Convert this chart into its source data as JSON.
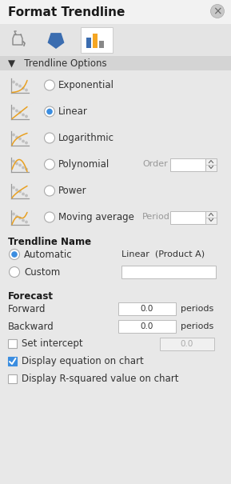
{
  "title": "Format Trendline",
  "bg_color": "#e8e8e8",
  "title_bar_color": "#f2f2f2",
  "tab_bar_color": "#e4e4e4",
  "section_header_color": "#d4d4d4",
  "trendline_options": [
    {
      "label": "Exponential",
      "selected": false,
      "curve": "exp"
    },
    {
      "label": "Linear",
      "selected": true,
      "curve": "linear"
    },
    {
      "label": "Logarithmic",
      "selected": false,
      "curve": "log"
    },
    {
      "label": "Polynomial",
      "selected": false,
      "curve": "poly",
      "extra_label": "Order",
      "has_spinner": true
    },
    {
      "label": "Power",
      "selected": false,
      "curve": "power"
    },
    {
      "label": "Moving average",
      "selected": false,
      "curve": "moving",
      "extra_label": "Period",
      "has_spinner": true
    }
  ],
  "trendline_name_label": "Trendline Name",
  "automatic_label": "Automatic",
  "automatic_selected": true,
  "automatic_value": "Linear  (Product A)",
  "custom_label": "Custom",
  "forecast_label": "Forecast",
  "forward_label": "Forward",
  "forward_value": "0.0",
  "backward_label": "Backward",
  "backward_value": "0.0",
  "set_intercept_label": "Set intercept",
  "set_intercept_checked": false,
  "intercept_value": "0.0",
  "display_eq_label": "Display equation on chart",
  "display_eq_checked": true,
  "display_rsq_label": "Display R-squared value on chart",
  "display_rsq_checked": false,
  "radio_selected_color": "#3b8de0",
  "checkbox_checked_color": "#3b8de0",
  "orange_color": "#e8a020",
  "dot_scatter_color": "#c0c0c0",
  "input_box_color": "#ffffff",
  "input_border_color": "#bbbbbb",
  "spinner_color": "#f0f0f0",
  "tab_active_color": "#ffffff",
  "tab_inactive_color": "#e4e4e4",
  "bar1_color": "#3b6db0",
  "bar2_color": "#f5a623",
  "bar3_color": "#888888",
  "close_btn_color": "#c8c8c8"
}
